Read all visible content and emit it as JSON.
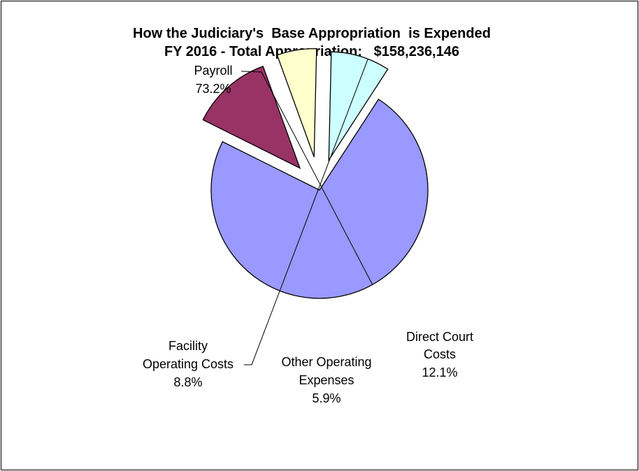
{
  "chart_data": {
    "type": "pie",
    "title_line1": "How the Judiciary's  Base Appropriation  is Expended",
    "title_line2": "FY 2016 - Total Appropriation:   $158,236,146",
    "slices": [
      {
        "name": "Payroll",
        "label_lines": [
          "Payroll"
        ],
        "percent_text": "73.2%",
        "value": 73.2,
        "color": "#9999ff"
      },
      {
        "name": "Direct Court Costs",
        "label_lines": [
          "Direct Court",
          "Costs"
        ],
        "percent_text": "12.1%",
        "value": 12.1,
        "color": "#993366"
      },
      {
        "name": "Other Operating Expenses",
        "label_lines": [
          "Other Operating",
          "Expenses"
        ],
        "percent_text": "5.9%",
        "value": 5.9,
        "color": "#ffffcc"
      },
      {
        "name": "Facility Operating Costs",
        "label_lines": [
          "Facility",
          "Operating Costs"
        ],
        "percent_text": "8.8%",
        "value": 8.8,
        "color": "#ccffff"
      }
    ],
    "legend": "none",
    "exploded": true
  }
}
